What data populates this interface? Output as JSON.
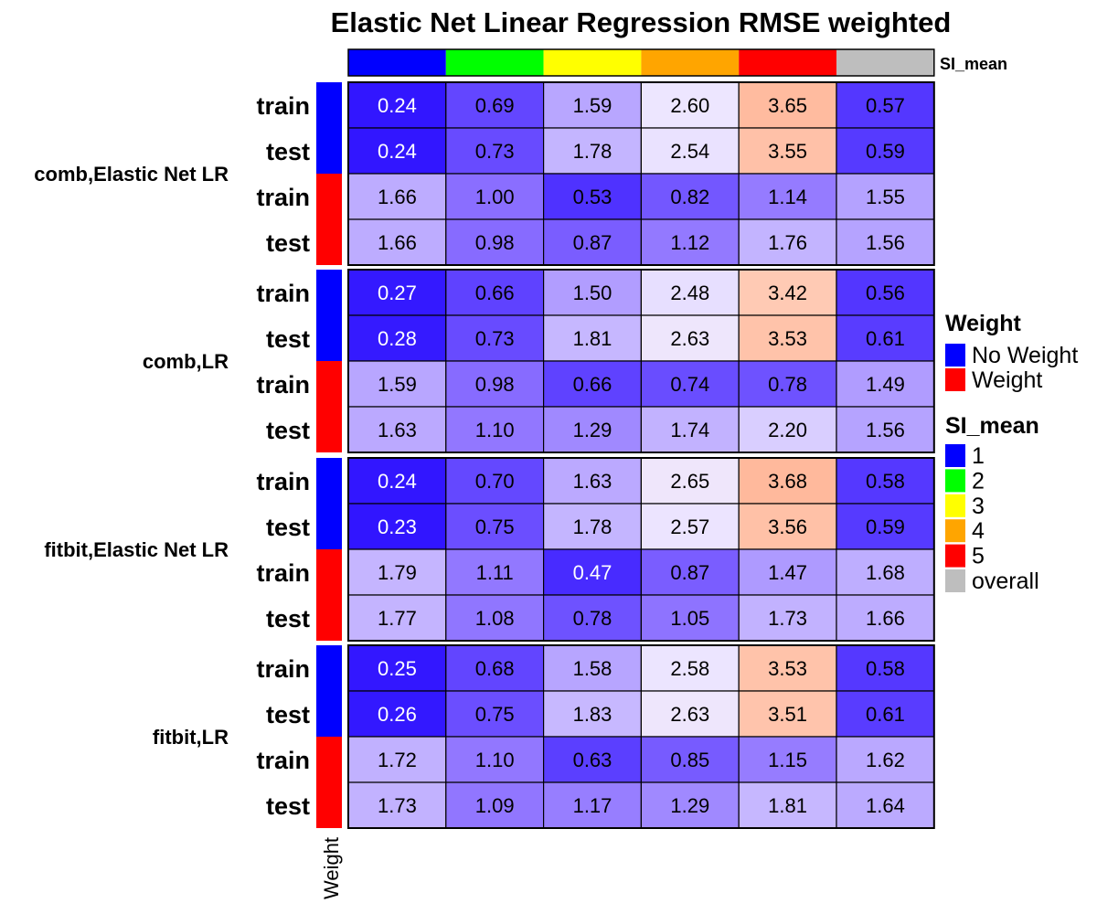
{
  "chart_data": {
    "type": "heatmap",
    "title": "Elastic Net Linear Regression RMSE weighted",
    "columns": [
      "1",
      "2",
      "3",
      "4",
      "5",
      "overall"
    ],
    "column_annotation": {
      "name": "SI_mean",
      "colors": [
        "#0000FF",
        "#00FF00",
        "#FFFF00",
        "#FFA500",
        "#FF0000",
        "#BEBEBE"
      ]
    },
    "row_annotation": {
      "name": "Weight",
      "levels": [
        "No Weight",
        "Weight"
      ],
      "colors": [
        "#0000FF",
        "#FF0000"
      ]
    },
    "groups": [
      {
        "label": "comb,Elastic Net LR",
        "rows": [
          {
            "label": "train",
            "weight": "No Weight",
            "values": [
              "0.24",
              "0.69",
              "1.59",
              "2.60",
              "3.65",
              "0.57"
            ]
          },
          {
            "label": "test",
            "weight": "No Weight",
            "values": [
              "0.24",
              "0.73",
              "1.78",
              "2.54",
              "3.55",
              "0.59"
            ]
          },
          {
            "label": "train",
            "weight": "Weight",
            "values": [
              "1.66",
              "1.00",
              "0.53",
              "0.82",
              "1.14",
              "1.55"
            ]
          },
          {
            "label": "test",
            "weight": "Weight",
            "values": [
              "1.66",
              "0.98",
              "0.87",
              "1.12",
              "1.76",
              "1.56"
            ]
          }
        ]
      },
      {
        "label": "comb,LR",
        "rows": [
          {
            "label": "train",
            "weight": "No Weight",
            "values": [
              "0.27",
              "0.66",
              "1.50",
              "2.48",
              "3.42",
              "0.56"
            ]
          },
          {
            "label": "test",
            "weight": "No Weight",
            "values": [
              "0.28",
              "0.73",
              "1.81",
              "2.63",
              "3.53",
              "0.61"
            ]
          },
          {
            "label": "train",
            "weight": "Weight",
            "values": [
              "1.59",
              "0.98",
              "0.66",
              "0.74",
              "0.78",
              "1.49"
            ]
          },
          {
            "label": "test",
            "weight": "Weight",
            "values": [
              "1.63",
              "1.10",
              "1.29",
              "1.74",
              "2.20",
              "1.56"
            ]
          }
        ]
      },
      {
        "label": "fitbit,Elastic Net LR",
        "rows": [
          {
            "label": "train",
            "weight": "No Weight",
            "values": [
              "0.24",
              "0.70",
              "1.63",
              "2.65",
              "3.68",
              "0.58"
            ]
          },
          {
            "label": "test",
            "weight": "No Weight",
            "values": [
              "0.23",
              "0.75",
              "1.78",
              "2.57",
              "3.56",
              "0.59"
            ]
          },
          {
            "label": "train",
            "weight": "Weight",
            "values": [
              "1.79",
              "1.11",
              "0.47",
              "0.87",
              "1.47",
              "1.68"
            ]
          },
          {
            "label": "test",
            "weight": "Weight",
            "values": [
              "1.77",
              "1.08",
              "0.78",
              "1.05",
              "1.73",
              "1.66"
            ]
          }
        ]
      },
      {
        "label": "fitbit,LR",
        "rows": [
          {
            "label": "train",
            "weight": "No Weight",
            "values": [
              "0.25",
              "0.68",
              "1.58",
              "2.58",
              "3.53",
              "0.58"
            ]
          },
          {
            "label": "test",
            "weight": "No Weight",
            "values": [
              "0.26",
              "0.75",
              "1.83",
              "2.63",
              "3.51",
              "0.61"
            ]
          },
          {
            "label": "train",
            "weight": "Weight",
            "values": [
              "1.72",
              "1.10",
              "0.63",
              "0.85",
              "1.15",
              "1.62"
            ]
          },
          {
            "label": "test",
            "weight": "Weight",
            "values": [
              "1.73",
              "1.09",
              "1.17",
              "1.29",
              "1.81",
              "1.64"
            ]
          }
        ]
      }
    ],
    "color_scale": {
      "stops": [
        {
          "value": 0.0,
          "color": "#1A00FF"
        },
        {
          "value": 0.5,
          "color": "#4B2EFF"
        },
        {
          "value": 1.0,
          "color": "#8A6EFF"
        },
        {
          "value": 1.7,
          "color": "#C0B0FF"
        },
        {
          "value": 2.6,
          "color": "#EDE6FF"
        },
        {
          "value": 3.0,
          "color": "#FFE4DC"
        },
        {
          "value": 3.7,
          "color": "#FFB89A"
        }
      ],
      "light_text_below": 0.5
    },
    "legends": {
      "weight": {
        "title": "Weight",
        "items": [
          "No Weight",
          "Weight"
        ]
      },
      "si_mean": {
        "title": "SI_mean",
        "items": [
          "1",
          "2",
          "3",
          "4",
          "5",
          "overall"
        ]
      }
    },
    "row_annotation_axis_label": "Weight"
  }
}
